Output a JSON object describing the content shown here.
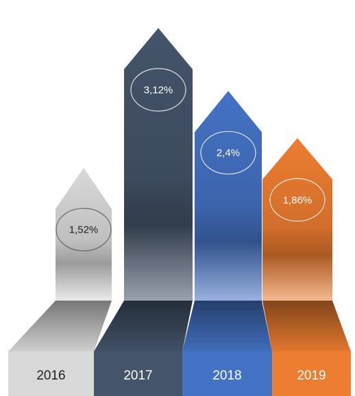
{
  "chart_data": {
    "type": "bar",
    "style": "arrow-columns",
    "categories": [
      "2016",
      "2017",
      "2018",
      "2019"
    ],
    "values": [
      1.52,
      3.12,
      2.4,
      1.86
    ],
    "data_labels": [
      "1,52%",
      "3,12%",
      "2,4%",
      "1,86%"
    ],
    "unit": "%",
    "ylim": [
      0,
      3.3
    ],
    "title": "",
    "xlabel": "",
    "ylabel": "",
    "grid": false,
    "legend": "none",
    "colors": {
      "2016": "#d9d9d9",
      "2017": "#44546a",
      "2018": "#4472c4",
      "2019": "#ed7d31"
    }
  }
}
